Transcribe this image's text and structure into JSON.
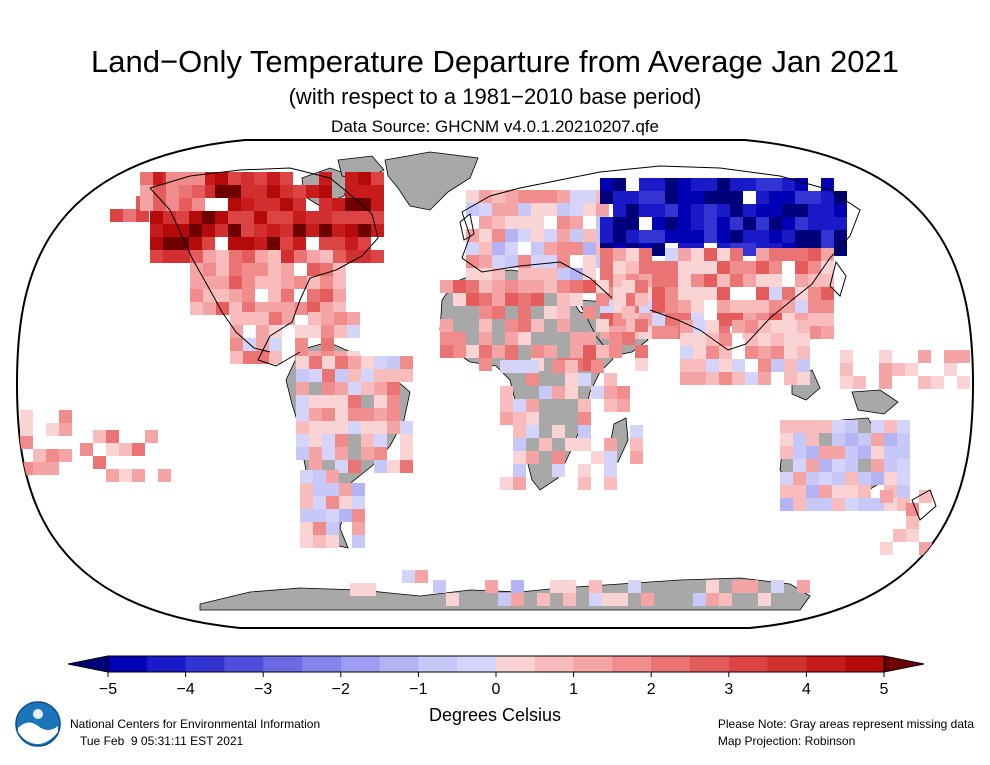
{
  "header": {
    "title": "Land−Only Temperature Departure from Average Jan 2021",
    "subtitle": "(with respect to a 1981−2010 base period)",
    "source": "Data Source: GHCNM v4.0.1.20210207.qfe"
  },
  "colorbar": {
    "ticks": [
      "−5",
      "−4",
      "−3",
      "−2",
      "−1",
      "0",
      "1",
      "2",
      "3",
      "4",
      "5"
    ],
    "unit_label": "Degrees Celsius",
    "colors": [
      "#0000b4",
      "#1a1ac8",
      "#3434d2",
      "#4e4edc",
      "#6a6ae4",
      "#8484ea",
      "#9c9cf0",
      "#b4b4f4",
      "#c8c8f8",
      "#d4d4fa",
      "#fad4d4",
      "#f8bcbc",
      "#f4a4a4",
      "#f08c8c",
      "#ea7474",
      "#e45c5c",
      "#dc4444",
      "#d23030",
      "#c81c1c",
      "#b40a0a"
    ],
    "low_extreme_color": "#00007a",
    "high_extreme_color": "#6e0000"
  },
  "map": {
    "projection": "Robinson",
    "missing_color": "#a8a8a8",
    "land_outline_color": "#000000"
  },
  "footer": {
    "org": "National Centers for Environmental Information",
    "timestamp": "Tue Feb  9 05:31:11 EST 2021",
    "note": "Please Note: Gray areas represent missing data",
    "projection_note": "Map Projection: Robinson"
  }
}
